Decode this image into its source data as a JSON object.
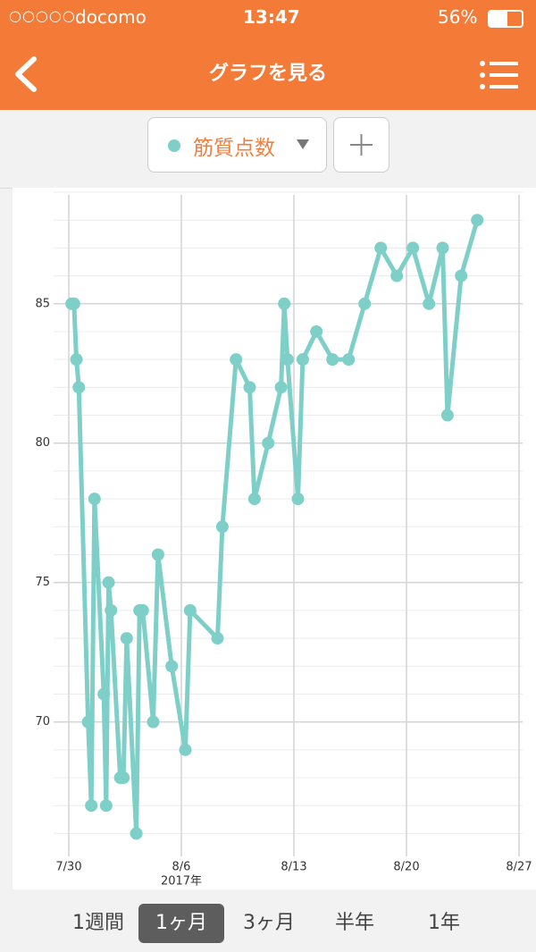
{
  "status_bar": {
    "carrier": "docomo",
    "time": "13:47",
    "battery": "56%"
  },
  "header": {
    "title": "グラフを見る"
  },
  "selector": {
    "label": "筋質点数"
  },
  "tabs": {
    "items": [
      "1週間",
      "1ヶ月",
      "3ヶ月",
      "半年",
      "1年"
    ],
    "active": 1
  },
  "chart_data": {
    "type": "line",
    "x": [
      "2017-07-30",
      "2017-07-30",
      "2017-07-30",
      "2017-07-30",
      "2017-07-31",
      "2017-07-31",
      "2017-07-31",
      "2017-08-01",
      "2017-08-01",
      "2017-08-01",
      "2017-08-01",
      "2017-08-02",
      "2017-08-02",
      "2017-08-02",
      "2017-08-03",
      "2017-08-03",
      "2017-08-03",
      "2017-08-04",
      "2017-08-04",
      "2017-08-05",
      "2017-08-06",
      "2017-08-06",
      "2017-08-08",
      "2017-08-08",
      "2017-08-09",
      "2017-08-10",
      "2017-08-10",
      "2017-08-11",
      "2017-08-12",
      "2017-08-12",
      "2017-08-12",
      "2017-08-13",
      "2017-08-13",
      "2017-08-14",
      "2017-08-15",
      "2017-08-16",
      "2017-08-17",
      "2017-08-18",
      "2017-08-19",
      "2017-08-20",
      "2017-08-21",
      "2017-08-22",
      "2017-08-22",
      "2017-08-23",
      "2017-08-24"
    ],
    "series": [
      {
        "name": "筋質点数",
        "color": "#7fcfc9",
        "values": [
          85,
          85,
          83,
          82,
          70,
          67,
          78,
          71,
          67,
          75,
          74,
          68,
          68,
          73,
          66,
          74,
          74,
          70,
          76,
          72,
          69,
          74,
          73,
          77,
          83,
          82,
          78,
          80,
          82,
          85,
          83,
          78,
          83,
          84,
          83,
          83,
          85,
          87,
          86,
          87,
          85,
          87,
          81,
          86,
          88
        ]
      }
    ],
    "xlim": [
      "2017-07-29",
      "2017-08-28"
    ],
    "xticks": [
      {
        "value": "2017-07-30",
        "label": "7/30"
      },
      {
        "value": "2017-08-06",
        "label": "8/6"
      },
      {
        "value": "2017-08-13",
        "label": "8/13"
      },
      {
        "value": "2017-08-20",
        "label": "8/20"
      },
      {
        "value": "2017-08-27",
        "label": "8/27"
      }
    ],
    "x_year_label": "2017年",
    "ylim": [
      65.5,
      89
    ],
    "yticks": [
      70,
      75,
      80,
      85
    ],
    "minor_grid_step": 1,
    "grid": true
  }
}
